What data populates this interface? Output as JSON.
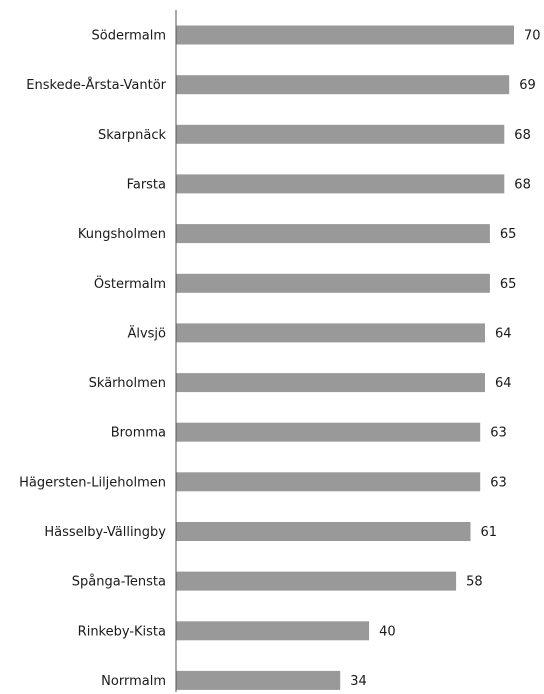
{
  "chart_data": {
    "type": "bar",
    "orientation": "horizontal",
    "categories": [
      "Södermalm",
      "Enskede-Årsta-Vantör",
      "Skarpnäck",
      "Farsta",
      "Kungsholmen",
      "Östermalm",
      "Älvsjö",
      "Skärholmen",
      "Bromma",
      "Hägersten-Liljeholmen",
      "Hässelby-Vällingby",
      "Spånga-Tensta",
      "Rinkeby-Kista",
      "Norrmalm"
    ],
    "values": [
      70,
      69,
      68,
      68,
      65,
      65,
      64,
      64,
      63,
      63,
      61,
      58,
      40,
      34
    ],
    "value_labels": [
      "70",
      "69",
      "68",
      "68",
      "65",
      "65",
      "64",
      "64",
      "63",
      "63",
      "61",
      "58",
      "40",
      "34"
    ],
    "title": "",
    "xlabel": "",
    "ylabel": "",
    "xlim": [
      0,
      70
    ],
    "grid": false,
    "legend": "none",
    "bar_color": "#999999",
    "axis_color": "#555555"
  }
}
